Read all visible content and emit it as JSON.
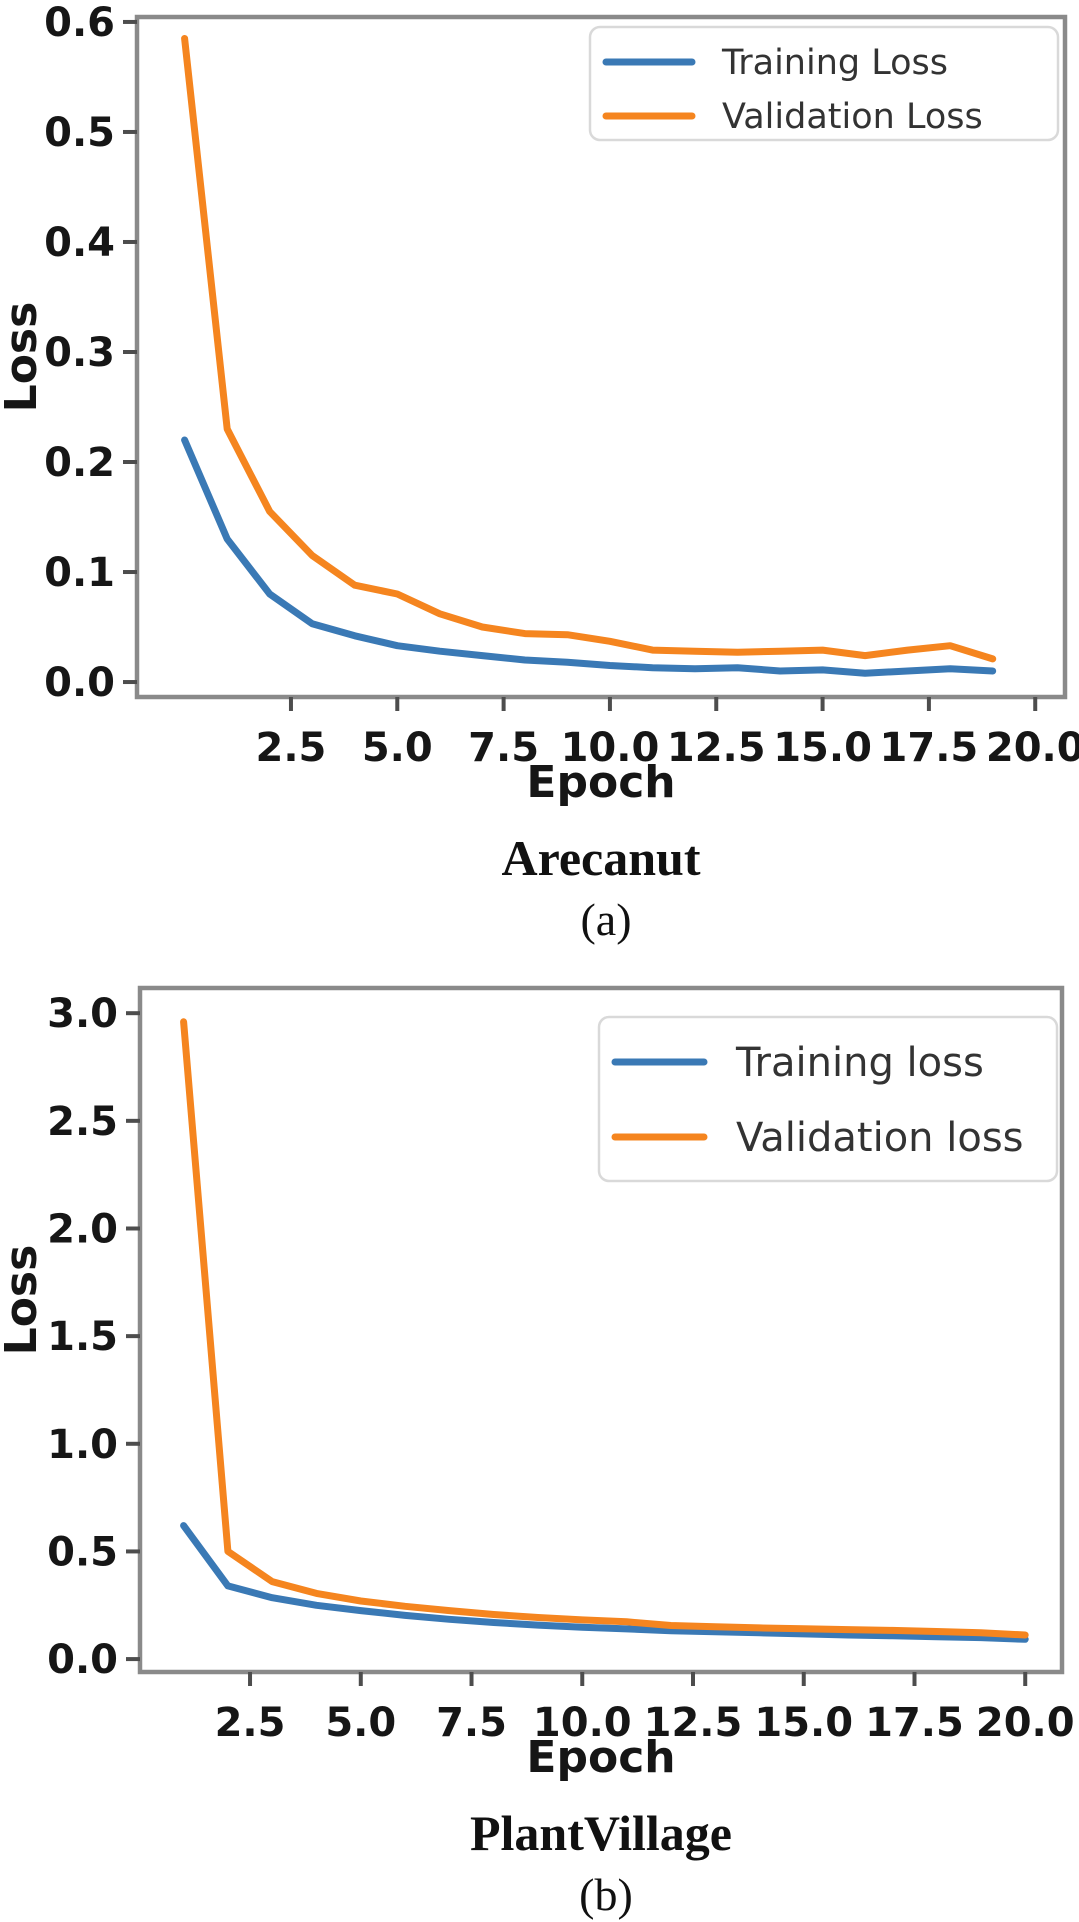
{
  "colors": {
    "training": "#3a79b5",
    "validation": "#f5851f",
    "spine": "#8a8a8a",
    "tick": "#4d4d4d",
    "tick_label": "#161616",
    "legend_text": "#333333",
    "legend_border": "#d9d9d9",
    "background": "#ffffff"
  },
  "chart_data": [
    {
      "type": "line",
      "caption": "Arecanut",
      "panel_label": "(a)",
      "xlabel": "Epoch",
      "ylabel": "Loss",
      "grid": false,
      "legend_position": "upper right",
      "x": [
        0,
        1,
        2,
        3,
        4,
        5,
        6,
        7,
        8,
        9,
        10,
        11,
        12,
        13,
        14,
        15,
        16,
        17,
        18,
        19
      ],
      "series": [
        {
          "name": "Training Loss",
          "color": "#3a79b5",
          "values": [
            0.22,
            0.13,
            0.08,
            0.053,
            0.042,
            0.033,
            0.028,
            0.024,
            0.02,
            0.018,
            0.015,
            0.013,
            0.012,
            0.013,
            0.01,
            0.011,
            0.008,
            0.01,
            0.012,
            0.01
          ]
        },
        {
          "name": "Validation Loss",
          "color": "#f5851f",
          "values": [
            0.585,
            0.23,
            0.155,
            0.115,
            0.088,
            0.08,
            0.062,
            0.05,
            0.044,
            0.043,
            0.037,
            0.029,
            0.028,
            0.027,
            0.028,
            0.029,
            0.024,
            0.029,
            0.033,
            0.021
          ]
        }
      ],
      "xlim": [
        -1.12,
        20.7
      ],
      "ylim": [
        -0.0136,
        0.6045
      ],
      "x_ticks": [
        2.5,
        5.0,
        7.5,
        10.0,
        12.5,
        15.0,
        17.5,
        20.0
      ],
      "x_tick_labels": [
        "2.5",
        "5.0",
        "7.5",
        "10.0",
        "12.5",
        "15.0",
        "17.5",
        "20.0"
      ],
      "y_ticks": [
        0.0,
        0.1,
        0.2,
        0.3,
        0.4,
        0.5,
        0.6
      ],
      "y_tick_labels": [
        "0.0",
        "0.1",
        "0.2",
        "0.3",
        "0.4",
        "0.5",
        "0.6"
      ]
    },
    {
      "type": "line",
      "caption": "PlantVillage",
      "panel_label": "(b)",
      "xlabel": "Epoch",
      "ylabel": "Loss",
      "grid": false,
      "legend_position": "upper right",
      "x": [
        1,
        2,
        3,
        4,
        5,
        6,
        7,
        8,
        9,
        10,
        11,
        12,
        13,
        14,
        15,
        16,
        17,
        18,
        19,
        20
      ],
      "series": [
        {
          "name": "Training loss",
          "color": "#3a79b5",
          "values": [
            0.62,
            0.34,
            0.285,
            0.25,
            0.225,
            0.203,
            0.185,
            0.17,
            0.158,
            0.148,
            0.14,
            0.132,
            0.127,
            0.122,
            0.117,
            0.112,
            0.108,
            0.104,
            0.1,
            0.092
          ]
        },
        {
          "name": "Validation loss",
          "color": "#f5851f",
          "values": [
            2.96,
            0.5,
            0.36,
            0.305,
            0.27,
            0.245,
            0.225,
            0.207,
            0.193,
            0.182,
            0.173,
            0.156,
            0.15,
            0.145,
            0.141,
            0.137,
            0.133,
            0.128,
            0.122,
            0.112
          ]
        }
      ],
      "xlim": [
        0.016,
        20.83
      ],
      "ylim": [
        -0.06,
        3.117
      ],
      "x_ticks": [
        2.5,
        5.0,
        7.5,
        10.0,
        12.5,
        15.0,
        17.5,
        20.0
      ],
      "x_tick_labels": [
        "2.5",
        "5.0",
        "7.5",
        "10.0",
        "12.5",
        "15.0",
        "17.5",
        "20.0"
      ],
      "y_ticks": [
        0.0,
        0.5,
        1.0,
        1.5,
        2.0,
        2.5,
        3.0
      ],
      "y_tick_labels": [
        "0.0",
        "0.5",
        "1.0",
        "1.5",
        "2.0",
        "2.5",
        "3.0"
      ]
    }
  ]
}
